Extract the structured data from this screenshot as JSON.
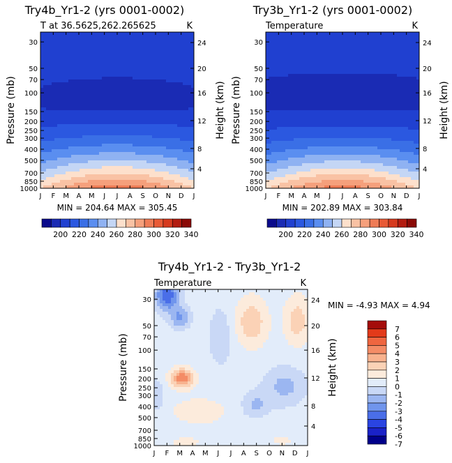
{
  "chart_data": [
    {
      "type": "heatmap",
      "title": "Try4b_Yr1-2 (yrs 0001-0002)",
      "subtitle_left": "T at 36.5625,262.265625",
      "subtitle_right": "K",
      "ylabel_left": "Pressure (mb)",
      "ylabel_right": "Height (km)",
      "months": [
        "J",
        "F",
        "M",
        "A",
        "M",
        "J",
        "J",
        "A",
        "S",
        "O",
        "N",
        "D",
        "J"
      ],
      "pressure_ticks": [
        "30",
        "50",
        "70",
        "100",
        "150",
        "200",
        "250",
        "300",
        "400",
        "500",
        "700",
        "850",
        "1000"
      ],
      "height_ticks": [
        "24",
        "20",
        "16",
        "12",
        "8",
        "4"
      ],
      "minmax_text": "MIN = 204.64  MAX = 305.45",
      "colorbar_labels": [
        "200",
        "220",
        "240",
        "260",
        "280",
        "300",
        "320",
        "340"
      ],
      "zlim": [
        190,
        350
      ]
    },
    {
      "type": "heatmap",
      "title": "Try3b_Yr1-2 (yrs 0001-0002)",
      "subtitle_left": "Temperature",
      "subtitle_right": "K",
      "ylabel_left": "Pressure (mb)",
      "ylabel_right": "Height (km)",
      "months": [
        "J",
        "F",
        "M",
        "A",
        "M",
        "J",
        "J",
        "A",
        "S",
        "O",
        "N",
        "D",
        "J"
      ],
      "pressure_ticks": [
        "30",
        "50",
        "70",
        "100",
        "150",
        "200",
        "250",
        "300",
        "400",
        "500",
        "700",
        "850",
        "1000"
      ],
      "height_ticks": [
        "24",
        "20",
        "16",
        "12",
        "8",
        "4"
      ],
      "minmax_text": "MIN = 202.89  MAX = 303.84",
      "colorbar_labels": [
        "200",
        "220",
        "240",
        "260",
        "280",
        "300",
        "320",
        "340"
      ],
      "zlim": [
        190,
        350
      ]
    },
    {
      "type": "heatmap",
      "title": "Try4b_Yr1-2 - Try3b_Yr1-2",
      "subtitle_left": "Temperature",
      "subtitle_right": "K",
      "ylabel_left": "Pressure (mb)",
      "ylabel_right": "Height (km)",
      "months": [
        "J",
        "F",
        "M",
        "A",
        "M",
        "J",
        "J",
        "A",
        "S",
        "O",
        "N",
        "D",
        "J"
      ],
      "pressure_ticks": [
        "30",
        "50",
        "70",
        "100",
        "150",
        "200",
        "250",
        "300",
        "400",
        "500",
        "700",
        "850",
        "1000"
      ],
      "height_ticks": [
        "24",
        "20",
        "16",
        "12",
        "8",
        "4"
      ],
      "minmax_text": "MIN =   -4.93  MAX =    4.94",
      "colorbar_labels": [
        "7",
        "6",
        "5",
        "4",
        "3",
        "2",
        "1",
        "0",
        "-1",
        "-2",
        "-3",
        "-4",
        "-5",
        "-6",
        "-7"
      ],
      "zlim": [
        -8,
        8
      ]
    }
  ],
  "palettes": {
    "absolute": [
      "#0a0a8c",
      "#1a2bb4",
      "#2040d0",
      "#2b58e0",
      "#3a6fe6",
      "#5a8ef0",
      "#8fb2f2",
      "#c4d6f5",
      "#fde0cc",
      "#f9c2a4",
      "#f5a07c",
      "#ef7c56",
      "#e85a36",
      "#d63a1e",
      "#b31c10",
      "#8b0a06"
    ],
    "difference": [
      "#00008a",
      "#1a22c8",
      "#2a44e2",
      "#4a6ee8",
      "#7095ec",
      "#9bb6f1",
      "#c9d8f6",
      "#e2ecfa",
      "#fcebdc",
      "#fbd2b6",
      "#f8b28e",
      "#f48c66",
      "#ef6640",
      "#e23a1a",
      "#a40c0a"
    ]
  }
}
